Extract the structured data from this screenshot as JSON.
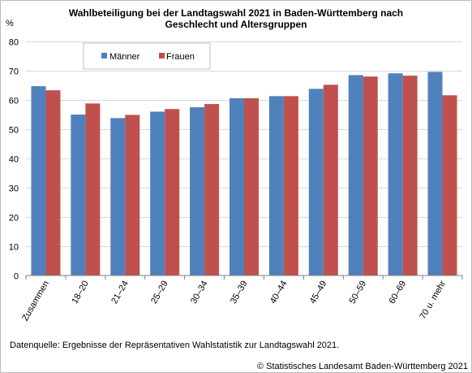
{
  "colors": {
    "maenner": "#4f81bd",
    "frauen": "#c0504d",
    "grid": "#d9d9d9",
    "axis": "#7f7f7f"
  },
  "chart_data": {
    "type": "bar",
    "title_lines": [
      "Wahlbeteiligung bei der Landtagswahl 2021 in Baden-Württemberg nach",
      "Geschlecht und Altersgruppen"
    ],
    "ylabel": "%",
    "ylim": [
      0,
      80
    ],
    "yticks": [
      0,
      10,
      20,
      30,
      40,
      50,
      60,
      70,
      80
    ],
    "grid": true,
    "legend_position": "top-left",
    "categories": [
      "Zusammen",
      "18–20",
      "21–24",
      "25–29",
      "30–34",
      "35–39",
      "40–44",
      "45–49",
      "50–59",
      "60–69",
      "70 u. mehr"
    ],
    "series": [
      {
        "name": "Männer",
        "values": [
          64.7,
          55.0,
          53.8,
          56.0,
          57.5,
          60.6,
          61.3,
          63.8,
          68.5,
          69.1,
          69.6
        ]
      },
      {
        "name": "Frauen",
        "values": [
          63.3,
          58.8,
          54.9,
          56.9,
          58.6,
          60.6,
          61.3,
          65.2,
          68.0,
          68.3,
          61.6
        ]
      }
    ]
  },
  "footnote": "Datenquelle: Ergebnisse der Repräsentativen Wahlstatistik zur Landtagswahl 2021.",
  "copyright": "© Statistisches Landesamt Baden-Württemberg 2021"
}
